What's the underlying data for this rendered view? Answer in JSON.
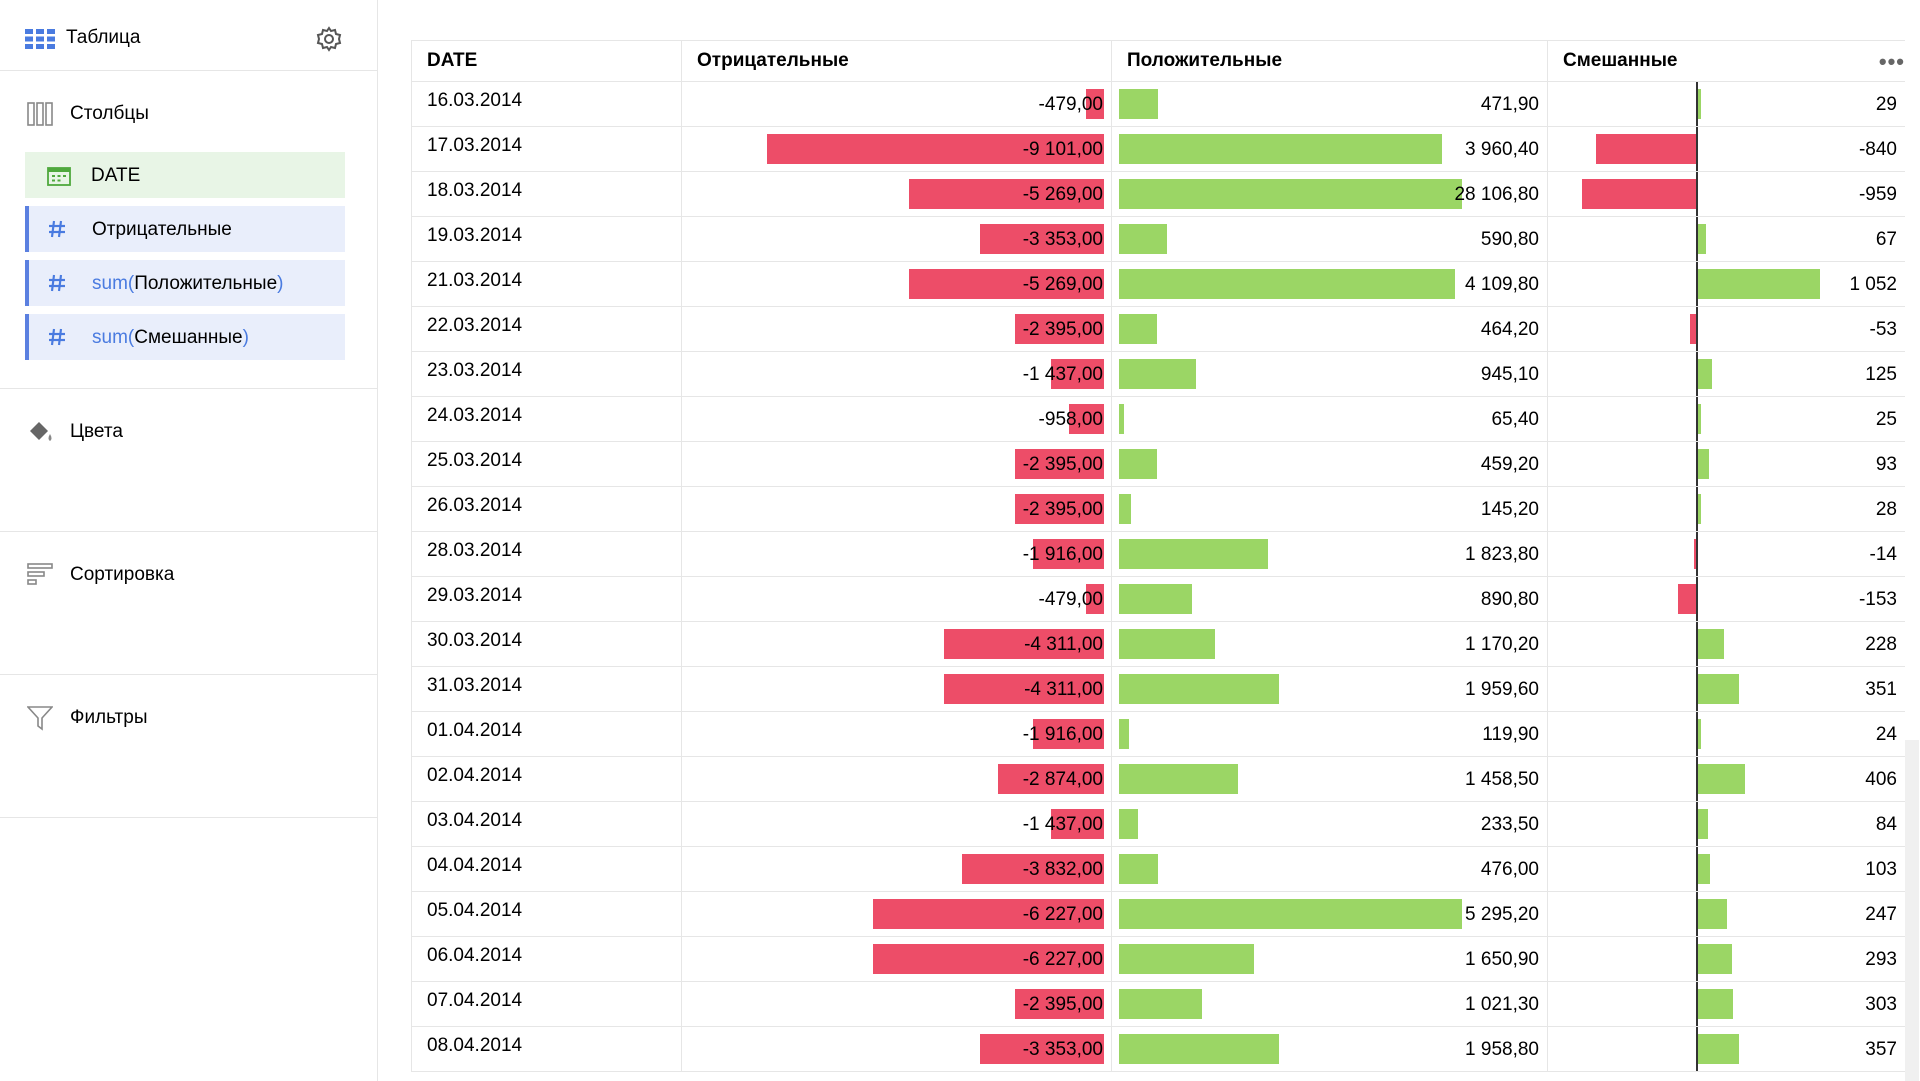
{
  "sidebar": {
    "title": "Таблица",
    "columns_title": "Столбцы",
    "fields": [
      {
        "kind": "dimension",
        "label": "DATE"
      },
      {
        "kind": "measure",
        "label": "Отрицательные"
      },
      {
        "kind": "measure",
        "fn": "sum(",
        "label": "Положительные",
        "close": ")"
      },
      {
        "kind": "measure",
        "fn": "sum(",
        "label": "Смешанные",
        "close": ")"
      }
    ],
    "colors_title": "Цвета",
    "sort_title": "Сортировка",
    "filters_title": "Фильтры"
  },
  "colors": {
    "negative": "#ed4d68",
    "positive": "#9bd665",
    "dimension_bg": "#e8f5e6",
    "measure_bg": "#e9eefb"
  },
  "table": {
    "headers": [
      "DATE",
      "Отрицательные",
      "Положительные",
      "Смешанные"
    ],
    "rows": [
      {
        "date": "16.03.2014",
        "neg": -479,
        "neg_t": "-479,00",
        "pos": 471.9,
        "pos_t": "471,90",
        "mix": 29,
        "mix_t": "29"
      },
      {
        "date": "17.03.2014",
        "neg": -9101,
        "neg_t": "-9 101,00",
        "pos": 3960.4,
        "pos_t": "3 960,40",
        "mix": -840,
        "mix_t": "-840"
      },
      {
        "date": "18.03.2014",
        "neg": -5269,
        "neg_t": "-5 269,00",
        "pos": 28106.8,
        "pos_t": "28 106,80",
        "mix": -959,
        "mix_t": "-959"
      },
      {
        "date": "19.03.2014",
        "neg": -3353,
        "neg_t": "-3 353,00",
        "pos": 590.8,
        "pos_t": "590,80",
        "mix": 67,
        "mix_t": "67"
      },
      {
        "date": "21.03.2014",
        "neg": -5269,
        "neg_t": "-5 269,00",
        "pos": 4109.8,
        "pos_t": "4 109,80",
        "mix": 1052,
        "mix_t": "1 052"
      },
      {
        "date": "22.03.2014",
        "neg": -2395,
        "neg_t": "-2 395,00",
        "pos": 464.2,
        "pos_t": "464,20",
        "mix": -53,
        "mix_t": "-53"
      },
      {
        "date": "23.03.2014",
        "neg": -1437,
        "neg_t": "-1 437,00",
        "pos": 945.1,
        "pos_t": "945,10",
        "mix": 125,
        "mix_t": "125"
      },
      {
        "date": "24.03.2014",
        "neg": -958,
        "neg_t": "-958,00",
        "pos": 65.4,
        "pos_t": "65,40",
        "mix": 25,
        "mix_t": "25"
      },
      {
        "date": "25.03.2014",
        "neg": -2395,
        "neg_t": "-2 395,00",
        "pos": 459.2,
        "pos_t": "459,20",
        "mix": 93,
        "mix_t": "93"
      },
      {
        "date": "26.03.2014",
        "neg": -2395,
        "neg_t": "-2 395,00",
        "pos": 145.2,
        "pos_t": "145,20",
        "mix": 28,
        "mix_t": "28"
      },
      {
        "date": "28.03.2014",
        "neg": -1916,
        "neg_t": "-1 916,00",
        "pos": 1823.8,
        "pos_t": "1 823,80",
        "mix": -14,
        "mix_t": "-14"
      },
      {
        "date": "29.03.2014",
        "neg": -479,
        "neg_t": "-479,00",
        "pos": 890.8,
        "pos_t": "890,80",
        "mix": -153,
        "mix_t": "-153"
      },
      {
        "date": "30.03.2014",
        "neg": -4311,
        "neg_t": "-4 311,00",
        "pos": 1170.2,
        "pos_t": "1 170,20",
        "mix": 228,
        "mix_t": "228"
      },
      {
        "date": "31.03.2014",
        "neg": -4311,
        "neg_t": "-4 311,00",
        "pos": 1959.6,
        "pos_t": "1 959,60",
        "mix": 351,
        "mix_t": "351"
      },
      {
        "date": "01.04.2014",
        "neg": -1916,
        "neg_t": "-1 916,00",
        "pos": 119.9,
        "pos_t": "119,90",
        "mix": 24,
        "mix_t": "24"
      },
      {
        "date": "02.04.2014",
        "neg": -2874,
        "neg_t": "-2 874,00",
        "pos": 1458.5,
        "pos_t": "1 458,50",
        "mix": 406,
        "mix_t": "406"
      },
      {
        "date": "03.04.2014",
        "neg": -1437,
        "neg_t": "-1 437,00",
        "pos": 233.5,
        "pos_t": "233,50",
        "mix": 84,
        "mix_t": "84"
      },
      {
        "date": "04.04.2014",
        "neg": -3832,
        "neg_t": "-3 832,00",
        "pos": 476.0,
        "pos_t": "476,00",
        "mix": 103,
        "mix_t": "103"
      },
      {
        "date": "05.04.2014",
        "neg": -6227,
        "neg_t": "-6 227,00",
        "pos": 5295.2,
        "pos_t": "5 295,20",
        "mix": 247,
        "mix_t": "247"
      },
      {
        "date": "06.04.2014",
        "neg": -6227,
        "neg_t": "-6 227,00",
        "pos": 1650.9,
        "pos_t": "1 650,90",
        "mix": 293,
        "mix_t": "293"
      },
      {
        "date": "07.04.2014",
        "neg": -2395,
        "neg_t": "-2 395,00",
        "pos": 1021.3,
        "pos_t": "1 021,30",
        "mix": 303,
        "mix_t": "303"
      },
      {
        "date": "08.04.2014",
        "neg": -3353,
        "neg_t": "-3 353,00",
        "pos": 1958.8,
        "pos_t": "1 958,80",
        "mix": 357,
        "mix_t": "357"
      }
    ]
  }
}
